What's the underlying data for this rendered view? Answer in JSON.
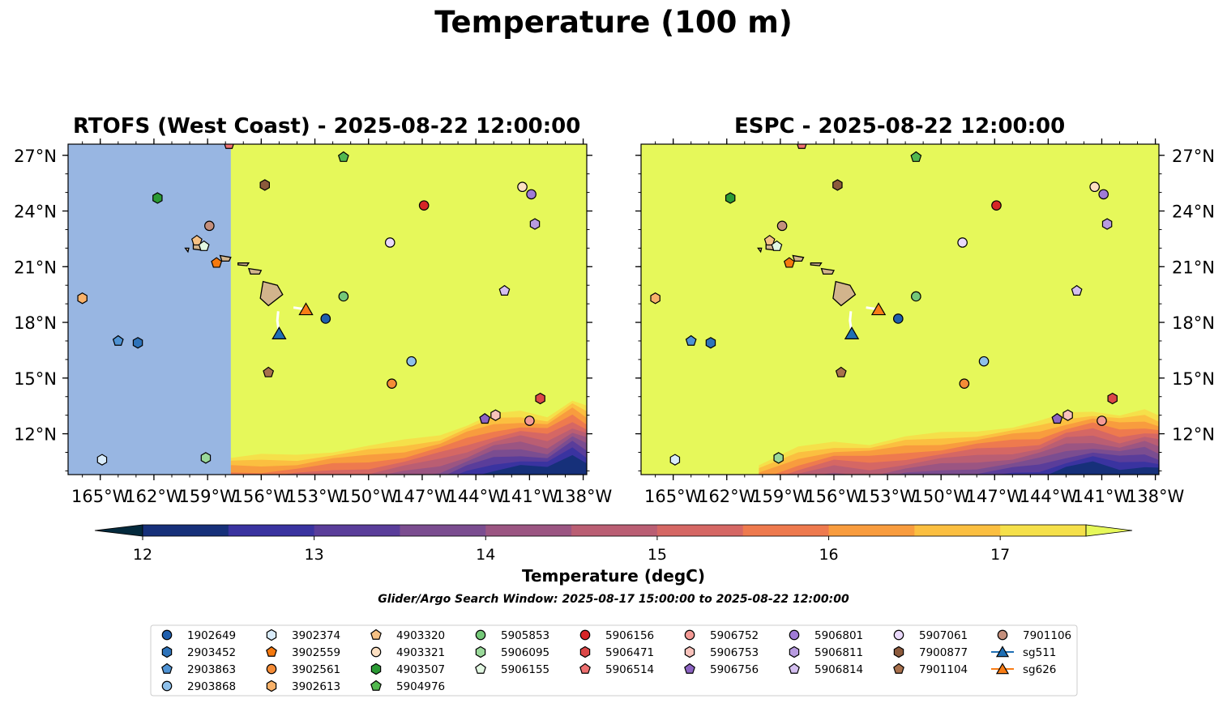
{
  "figure": {
    "title": "Temperature (100 m)",
    "caption": "Glider/Argo Search Window: 2025-08-17 15:00:00 to 2025-08-22 12:00:00",
    "land_color": "#d2b48c",
    "left_fill_color": "#98b6e2",
    "marker_edge_color": "#000000"
  },
  "chart_data": [
    {
      "type": "contour-map",
      "title": "RTOFS (West Coast) - 2025-08-22 12:00:00",
      "x_range": [
        -166.8,
        -137.8
      ],
      "y_range": [
        9.8,
        27.6
      ],
      "x_ticks": [
        -165,
        -162,
        -159,
        -156,
        -153,
        -150,
        -147,
        -144,
        -141,
        -138
      ],
      "x_tick_labels": [
        "165°W",
        "162°W",
        "159°W",
        "156°W",
        "153°W",
        "150°W",
        "147°W",
        "144°W",
        "141°W",
        "138°W"
      ],
      "y_ticks": [
        12,
        15,
        18,
        21,
        24,
        27
      ],
      "y_tick_labels": [
        "12°N",
        "15°N",
        "18°N",
        "21°N",
        "24°N",
        "27°N"
      ],
      "no_data_west_of": -157.7,
      "background_temperature": 17.6,
      "cold_band": [
        [
          -157.7,
          10.7
        ],
        [
          -156,
          10.8
        ],
        [
          -154,
          10.9
        ],
        [
          -152,
          11.1
        ],
        [
          -150,
          11.3
        ],
        [
          -148,
          11.6
        ],
        [
          -146,
          12.0
        ],
        [
          -144.5,
          12.5
        ],
        [
          -143,
          13.0
        ],
        [
          -141.5,
          13.2
        ],
        [
          -140,
          13.0
        ],
        [
          -138.6,
          13.8
        ],
        [
          -137.8,
          13.4
        ]
      ]
    },
    {
      "type": "contour-map",
      "title": "ESPC - 2025-08-22 12:00:00",
      "x_range": [
        -166.8,
        -137.8
      ],
      "y_range": [
        9.8,
        27.6
      ],
      "x_ticks": [
        -165,
        -162,
        -159,
        -156,
        -153,
        -150,
        -147,
        -144,
        -141,
        -138
      ],
      "x_tick_labels": [
        "165°W",
        "162°W",
        "159°W",
        "156°W",
        "153°W",
        "150°W",
        "147°W",
        "144°W",
        "141°W",
        "138°W"
      ],
      "y_ticks": [
        12,
        15,
        18,
        21,
        24,
        27
      ],
      "y_tick_labels": [
        "12°N",
        "15°N",
        "18°N",
        "21°N",
        "24°N",
        "27°N"
      ],
      "no_data_west_of": null,
      "background_temperature": 17.6,
      "cold_band": [
        [
          -160.2,
          10.3
        ],
        [
          -158,
          11.2
        ],
        [
          -156,
          11.6
        ],
        [
          -154,
          11.5
        ],
        [
          -152,
          11.8
        ],
        [
          -150,
          12.0
        ],
        [
          -148,
          12.2
        ],
        [
          -146,
          12.4
        ],
        [
          -144.5,
          12.6
        ],
        [
          -143,
          13.1
        ],
        [
          -141.5,
          13.3
        ],
        [
          -140,
          13.0
        ],
        [
          -138.6,
          13.2
        ],
        [
          -137.8,
          13.0
        ]
      ]
    }
  ],
  "colorbar": {
    "label": "Temperature (degC)",
    "ticks": [
      12,
      13,
      14,
      15,
      16,
      17
    ],
    "tick_labels": [
      "12",
      "13",
      "14",
      "15",
      "16",
      "17"
    ],
    "levels": [
      11.5,
      12,
      12.5,
      13,
      13.5,
      14,
      14.5,
      15,
      15.5,
      16,
      16.5,
      17,
      17.5
    ],
    "colors": [
      "#042a3d",
      "#0c2a4c",
      "#16307a",
      "#3a33a0",
      "#5a3d9a",
      "#7b4d90",
      "#9b5582",
      "#ba5e73",
      "#d56764",
      "#ee7a4e",
      "#f89c3e",
      "#fbbf40",
      "#f5e04a",
      "#e6f85a"
    ],
    "extend": "both"
  },
  "islands": {
    "hawaii": [
      [
        -155.9,
        20.2
      ],
      [
        -155.1,
        20.0
      ],
      [
        -154.8,
        19.5
      ],
      [
        -155.6,
        18.9
      ],
      [
        -156.05,
        19.3
      ]
    ],
    "maui": [
      [
        -156.7,
        20.9
      ],
      [
        -156.0,
        20.8
      ],
      [
        -156.1,
        20.6
      ],
      [
        -156.6,
        20.6
      ]
    ],
    "molokai": [
      [
        -157.3,
        21.2
      ],
      [
        -156.7,
        21.2
      ],
      [
        -156.8,
        21.05
      ],
      [
        -157.3,
        21.1
      ]
    ],
    "oahu": [
      [
        -158.3,
        21.6
      ],
      [
        -157.7,
        21.5
      ],
      [
        -157.8,
        21.3
      ],
      [
        -158.2,
        21.3
      ]
    ],
    "kauai": [
      [
        -159.8,
        22.2
      ],
      [
        -159.3,
        22.2
      ],
      [
        -159.4,
        21.9
      ],
      [
        -159.8,
        21.95
      ]
    ],
    "niihau": [
      [
        -160.25,
        22.0
      ],
      [
        -160.05,
        22.0
      ],
      [
        -160.1,
        21.8
      ]
    ]
  },
  "floats": [
    {
      "id": "1902649",
      "marker": "circle",
      "color": "#1f5fae",
      "lon": -152.4,
      "lat": 18.2
    },
    {
      "id": "2903452",
      "marker": "hexagon",
      "color": "#2e73ba",
      "lon": -162.9,
      "lat": 16.9
    },
    {
      "id": "2903863",
      "marker": "pentagon",
      "color": "#4f93d4",
      "lon": -164.0,
      "lat": 17.0
    },
    {
      "id": "2903868",
      "marker": "circle",
      "color": "#8ec0ea",
      "lon": -147.6,
      "lat": 15.9
    },
    {
      "id": "3902374",
      "marker": "hexagon",
      "color": "#d9ecfb",
      "lon": -164.9,
      "lat": 10.6
    },
    {
      "id": "3902559",
      "marker": "pentagon",
      "color": "#f5790f",
      "lon": -158.5,
      "lat": 21.2
    },
    {
      "id": "3902561",
      "marker": "circle",
      "color": "#f58c37",
      "lon": -148.7,
      "lat": 14.7
    },
    {
      "id": "3902613",
      "marker": "hexagon",
      "color": "#f9b26a",
      "lon": -166.0,
      "lat": 19.3
    },
    {
      "id": "4903320",
      "marker": "pentagon",
      "color": "#f6c184",
      "lon": -159.6,
      "lat": 22.4
    },
    {
      "id": "4903321",
      "marker": "circle",
      "color": "#fde0c2",
      "lon": -141.4,
      "lat": 25.3
    },
    {
      "id": "4903507",
      "marker": "hexagon",
      "color": "#2b9a34",
      "lon": -161.8,
      "lat": 24.7
    },
    {
      "id": "5904976",
      "marker": "pentagon",
      "color": "#52b84f",
      "lon": -151.4,
      "lat": 26.9
    },
    {
      "id": "5905853",
      "marker": "circle",
      "color": "#74c878",
      "lon": -151.4,
      "lat": 19.4
    },
    {
      "id": "5906095",
      "marker": "hexagon",
      "color": "#9ad99a",
      "lon": -159.1,
      "lat": 10.7
    },
    {
      "id": "5906155",
      "marker": "pentagon",
      "color": "#e2f7e2",
      "lon": -159.2,
      "lat": 22.1
    },
    {
      "id": "5906156",
      "marker": "circle",
      "color": "#d62627",
      "lon": -146.9,
      "lat": 24.3
    },
    {
      "id": "5906471",
      "marker": "hexagon",
      "color": "#dc4747",
      "lon": -140.4,
      "lat": 13.9
    },
    {
      "id": "5906514",
      "marker": "pentagon",
      "color": "#ee7070",
      "lon": -157.8,
      "lat": 27.6
    },
    {
      "id": "5906752",
      "marker": "circle",
      "color": "#f49a95",
      "lon": -141.0,
      "lat": 12.7
    },
    {
      "id": "5906753",
      "marker": "hexagon",
      "color": "#f9c2bb",
      "lon": -142.9,
      "lat": 13.0
    },
    {
      "id": "5906756",
      "marker": "pentagon",
      "color": "#8c63c2",
      "lon": -143.5,
      "lat": 12.8
    },
    {
      "id": "5906801",
      "marker": "circle",
      "color": "#a07bd6",
      "lon": -140.9,
      "lat": 24.9
    },
    {
      "id": "5906811",
      "marker": "hexagon",
      "color": "#b89be0",
      "lon": -140.7,
      "lat": 23.3
    },
    {
      "id": "5906814",
      "marker": "pentagon",
      "color": "#d4bff0",
      "lon": -142.4,
      "lat": 19.7
    },
    {
      "id": "5907061",
      "marker": "circle",
      "color": "#ead9fb",
      "lon": -148.8,
      "lat": 22.3
    },
    {
      "id": "7900877",
      "marker": "hexagon",
      "color": "#8c5a3c",
      "lon": -155.8,
      "lat": 25.4
    },
    {
      "id": "7901104",
      "marker": "pentagon",
      "color": "#a8704c",
      "lon": -155.6,
      "lat": 15.3
    },
    {
      "id": "7901106",
      "marker": "circle",
      "color": "#c48f7c",
      "lon": -158.9,
      "lat": 23.2
    }
  ],
  "gliders": [
    {
      "id": "sg511",
      "marker": "triangle",
      "color": "#1f6fb4",
      "lon": -155.0,
      "lat": 17.4,
      "track": [
        [
          -155.0,
          17.4
        ],
        [
          -155.1,
          18.1
        ],
        [
          -155.05,
          18.6
        ]
      ]
    },
    {
      "id": "sg626",
      "marker": "triangle",
      "color": "#f97d16",
      "lon": -153.5,
      "lat": 18.7,
      "track": [
        [
          -154.2,
          18.8
        ],
        [
          -153.5,
          18.7
        ]
      ]
    }
  ],
  "legend_order": [
    "1902649",
    "2903452",
    "2903863",
    "2903868",
    "3902374",
    "3902559",
    "3902561",
    "3902613",
    "4903320",
    "4903321",
    "4903507",
    "5904976",
    "5905853",
    "5906095",
    "5906155",
    "5906156",
    "5906471",
    "5906514",
    "5906752",
    "5906753",
    "5906756",
    "5906801",
    "5906811",
    "5906814",
    "5907061",
    "7900877",
    "7901104",
    "7901106",
    "sg511",
    "sg626"
  ]
}
